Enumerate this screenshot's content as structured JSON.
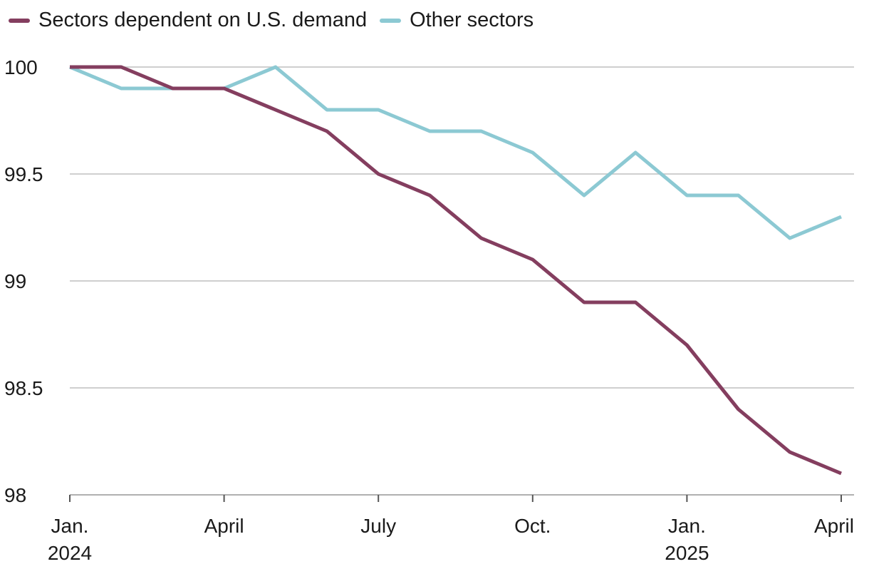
{
  "chart_data": {
    "type": "line",
    "title": "",
    "xlabel": "",
    "ylabel": "",
    "ylim": [
      98,
      100
    ],
    "yticks": [
      98,
      98.5,
      99,
      99.5,
      100
    ],
    "ytick_labels": [
      "98",
      "98.5",
      "99",
      "99.5",
      "100"
    ],
    "x": [
      "Jan 2024",
      "Feb 2024",
      "Mar 2024",
      "Apr 2024",
      "May 2024",
      "Jun 2024",
      "Jul 2024",
      "Aug 2024",
      "Sep 2024",
      "Oct 2024",
      "Nov 2024",
      "Dec 2024",
      "Jan 2025",
      "Feb 2025",
      "Mar 2025",
      "Apr 2025"
    ],
    "xtick_labels": [
      {
        "index": 0,
        "lines": [
          "Jan.",
          "2024"
        ]
      },
      {
        "index": 3,
        "lines": [
          "April"
        ]
      },
      {
        "index": 6,
        "lines": [
          "July"
        ]
      },
      {
        "index": 9,
        "lines": [
          "Oct."
        ]
      },
      {
        "index": 12,
        "lines": [
          "Jan.",
          "2025"
        ]
      },
      {
        "index": 15,
        "lines": [
          "April"
        ]
      }
    ],
    "grid": true,
    "legend_position": "top-left",
    "series": [
      {
        "name": "Sectors dependent on U.S. demand",
        "color": "#843e5f",
        "values": [
          100,
          100,
          99.9,
          99.9,
          99.8,
          99.7,
          99.5,
          99.4,
          99.2,
          99.1,
          98.9,
          98.9,
          98.7,
          98.4,
          98.2,
          98.1
        ]
      },
      {
        "name": "Other sectors",
        "color": "#8cc9d3",
        "values": [
          100,
          99.9,
          99.9,
          99.9,
          100,
          99.8,
          99.8,
          99.7,
          99.7,
          99.6,
          99.4,
          99.6,
          99.4,
          99.4,
          99.2,
          99.3
        ]
      }
    ]
  }
}
